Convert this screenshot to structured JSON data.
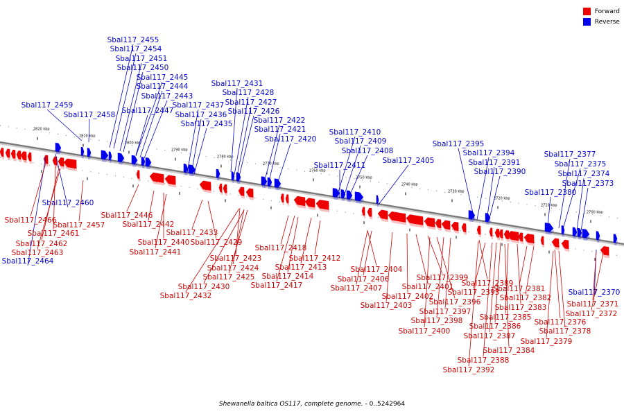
{
  "legend": {
    "forward": {
      "label": "Forward",
      "color": "#ee0000"
    },
    "reverse": {
      "label": "Reverse",
      "color": "#0000ee"
    }
  },
  "caption": {
    "title": "Shewanella baltica OS117, complete genome.",
    "range": " - 0..5242964"
  },
  "ticks": [
    "2820 kbp",
    "2810 kbp",
    "2800 kbp",
    "2790 kbp",
    "2780 kbp",
    "2770 kbp",
    "2760 kbp",
    "2750 kbp",
    "2740 kbp",
    "2730 kbp",
    "2720 kbp",
    "2710 kbp",
    "2700 kbp"
  ],
  "reverse_genes": [
    "Sbal117_2455",
    "Sbal117_2454",
    "Sbal117_2451",
    "Sbal117_2450",
    "Sbal117_2445",
    "Sbal117_2444",
    "Sbal117_2443",
    "Sbal117_2459",
    "Sbal117_2458",
    "Sbal117_2447",
    "Sbal117_2460",
    "Sbal117_2464",
    "Sbal117_2431",
    "Sbal117_2428",
    "Sbal117_2427",
    "Sbal117_2437",
    "Sbal117_2426",
    "Sbal117_2436",
    "Sbal117_2422",
    "Sbal117_2435",
    "Sbal117_2421",
    "Sbal117_2420",
    "Sbal117_2410",
    "Sbal117_2409",
    "Sbal117_2408",
    "Sbal117_2411",
    "Sbal117_2405",
    "Sbal117_2395",
    "Sbal117_2394",
    "Sbal117_2391",
    "Sbal117_2390",
    "Sbal117_2377",
    "Sbal117_2375",
    "Sbal117_2374",
    "Sbal117_2373",
    "Sbal117_2380",
    "Sbal117_2370"
  ],
  "forward_genes": [
    "Sbal117_2466",
    "Sbal117_2457",
    "Sbal117_2461",
    "Sbal117_2462",
    "Sbal117_2463",
    "Sbal117_2446",
    "Sbal117_2442",
    "Sbal117_2440",
    "Sbal117_2441",
    "Sbal117_2433",
    "Sbal117_2429",
    "Sbal117_2423",
    "Sbal117_2424",
    "Sbal117_2425",
    "Sbal117_2430",
    "Sbal117_2432",
    "Sbal117_2418",
    "Sbal117_2412",
    "Sbal117_2413",
    "Sbal117_2414",
    "Sbal117_2417",
    "Sbal117_2404",
    "Sbal117_2406",
    "Sbal117_2407",
    "Sbal117_2399",
    "Sbal117_2401",
    "Sbal117_2402",
    "Sbal117_2403",
    "Sbal117_2396",
    "Sbal117_2397",
    "Sbal117_2398",
    "Sbal117_2400",
    "Sbal117_2389",
    "Sbal117_2393",
    "Sbal117_2381",
    "Sbal117_2382",
    "Sbal117_2383",
    "Sbal117_2385",
    "Sbal117_2386",
    "Sbal117_2387",
    "Sbal117_2384",
    "Sbal117_2388",
    "Sbal117_2392",
    "Sbal117_2376",
    "Sbal117_2378",
    "Sbal117_2379",
    "Sbal117_2371",
    "Sbal117_2372"
  ]
}
